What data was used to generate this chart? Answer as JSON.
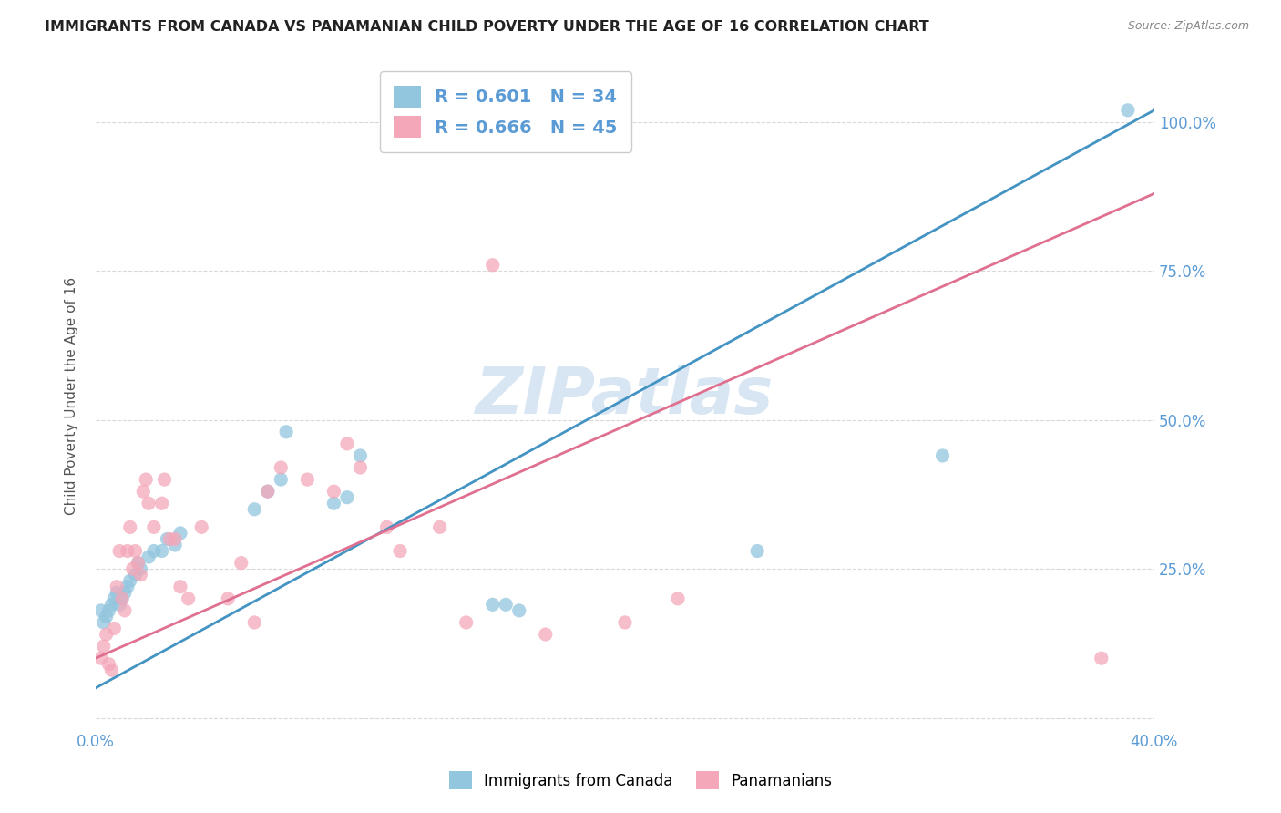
{
  "title": "IMMIGRANTS FROM CANADA VS PANAMANIAN CHILD POVERTY UNDER THE AGE OF 16 CORRELATION CHART",
  "source": "Source: ZipAtlas.com",
  "ylabel": "Child Poverty Under the Age of 16",
  "xlim": [
    0.0,
    0.4
  ],
  "ylim": [
    -0.02,
    1.1
  ],
  "blue_R": "0.601",
  "blue_N": "34",
  "pink_R": "0.666",
  "pink_N": "45",
  "blue_color": "#92c5de",
  "pink_color": "#f4a7b9",
  "blue_line_color": "#4393c3",
  "pink_line_color": "#e07090",
  "watermark": "ZIPatlas",
  "blue_line_x0": 0.0,
  "blue_line_y0": 0.05,
  "blue_line_x1": 0.4,
  "blue_line_y1": 1.02,
  "pink_line_x0": 0.0,
  "pink_line_y0": 0.1,
  "pink_line_x1": 0.4,
  "pink_line_y1": 0.88,
  "blue_scatter_x": [
    0.002,
    0.003,
    0.004,
    0.005,
    0.006,
    0.007,
    0.008,
    0.009,
    0.01,
    0.011,
    0.012,
    0.013,
    0.015,
    0.016,
    0.017,
    0.02,
    0.022,
    0.025,
    0.027,
    0.03,
    0.032,
    0.06,
    0.065,
    0.07,
    0.072,
    0.09,
    0.095,
    0.1,
    0.15,
    0.155,
    0.16,
    0.25,
    0.32,
    0.39
  ],
  "blue_scatter_y": [
    0.18,
    0.16,
    0.17,
    0.18,
    0.19,
    0.2,
    0.21,
    0.19,
    0.2,
    0.21,
    0.22,
    0.23,
    0.24,
    0.26,
    0.25,
    0.27,
    0.28,
    0.28,
    0.3,
    0.29,
    0.31,
    0.35,
    0.38,
    0.4,
    0.48,
    0.36,
    0.37,
    0.44,
    0.19,
    0.19,
    0.18,
    0.28,
    0.44,
    1.02
  ],
  "pink_scatter_x": [
    0.002,
    0.003,
    0.004,
    0.005,
    0.006,
    0.007,
    0.008,
    0.009,
    0.01,
    0.011,
    0.012,
    0.013,
    0.014,
    0.015,
    0.016,
    0.017,
    0.018,
    0.019,
    0.02,
    0.022,
    0.025,
    0.026,
    0.028,
    0.03,
    0.032,
    0.035,
    0.04,
    0.05,
    0.055,
    0.06,
    0.065,
    0.07,
    0.08,
    0.09,
    0.095,
    0.1,
    0.11,
    0.115,
    0.13,
    0.14,
    0.15,
    0.17,
    0.2,
    0.22,
    0.38
  ],
  "pink_scatter_y": [
    0.1,
    0.12,
    0.14,
    0.09,
    0.08,
    0.15,
    0.22,
    0.28,
    0.2,
    0.18,
    0.28,
    0.32,
    0.25,
    0.28,
    0.26,
    0.24,
    0.38,
    0.4,
    0.36,
    0.32,
    0.36,
    0.4,
    0.3,
    0.3,
    0.22,
    0.2,
    0.32,
    0.2,
    0.26,
    0.16,
    0.38,
    0.42,
    0.4,
    0.38,
    0.46,
    0.42,
    0.32,
    0.28,
    0.32,
    0.16,
    0.76,
    0.14,
    0.16,
    0.2,
    0.1
  ],
  "background_color": "#ffffff",
  "grid_color": "#d8d8d8"
}
